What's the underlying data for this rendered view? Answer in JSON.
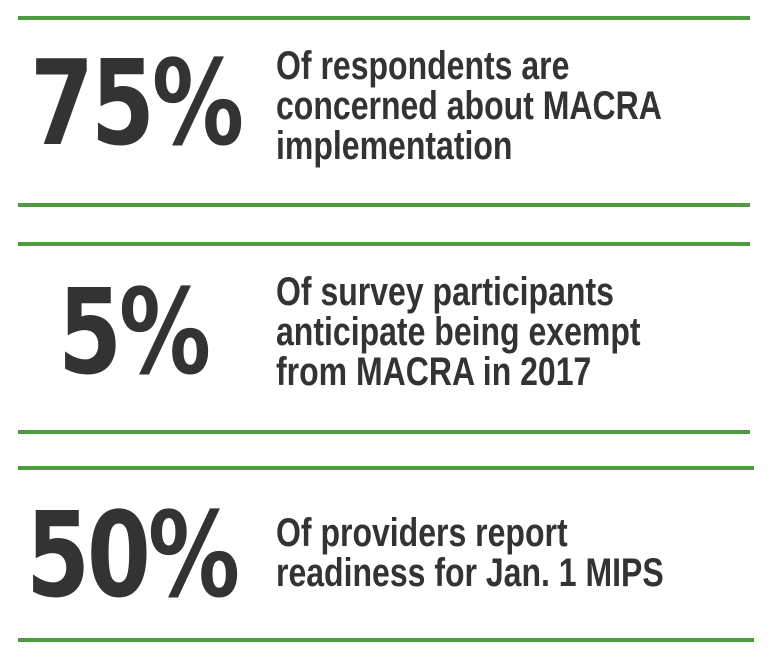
{
  "accent_color": "#4c9a3c",
  "text_color": "#333333",
  "stats": [
    {
      "value": "75%",
      "lines": [
        "Of respondents are",
        "concerned about MACRA",
        "implementation"
      ]
    },
    {
      "value": "5%",
      "lines": [
        "Of survey participants",
        "anticipate being exempt",
        "from MACRA in 2017"
      ]
    },
    {
      "value": "50%",
      "lines": [
        "Of providers report",
        "readiness for Jan. 1 MIPS"
      ]
    }
  ]
}
